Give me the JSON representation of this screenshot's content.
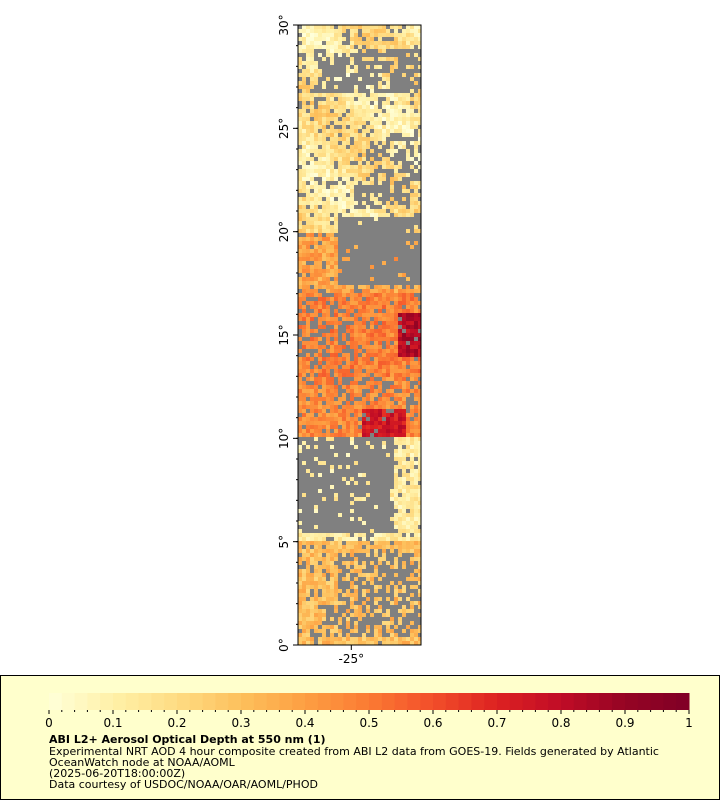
{
  "chart_data": {
    "type": "heatmap",
    "title": "ABI L2+ Aerosol Optical Depth at 550 nm (1)",
    "y_axis": {
      "ylim": [
        0,
        30
      ],
      "ticks": [
        "0°",
        "5°",
        "10°",
        "15°",
        "20°",
        "25°",
        "30°"
      ]
    },
    "x_axis": {
      "xlim": [
        -27.6,
        -21.6
      ],
      "ticks": [
        "-25°"
      ],
      "tick_values": [
        -25
      ]
    },
    "colorbar": {
      "range": [
        0,
        1
      ],
      "ticks": [
        "0",
        "0.1",
        "0.2",
        "0.3",
        "0.4",
        "0.5",
        "0.6",
        "0.7",
        "0.8",
        "0.9",
        "1"
      ],
      "colors": [
        "#ffffd9",
        "#fff1a8",
        "#fedc83",
        "#fdc05c",
        "#fd9f42",
        "#fb7a33",
        "#f24e2a",
        "#dd2121",
        "#c00c26",
        "#950424",
        "#800026"
      ]
    },
    "missing_color": "#808080",
    "description_lines": [
      "Experimental NRT AOD 4 hour composite created from ABI L2 data from GOES-19. Fields generated by Atlantic",
      "OceanWatch node at NOAA/AOML",
      "(2025-06-20T18:00:00Z)",
      "Data courtesy of USDOC/NOAA/OAR/AOML/PHOD"
    ]
  }
}
